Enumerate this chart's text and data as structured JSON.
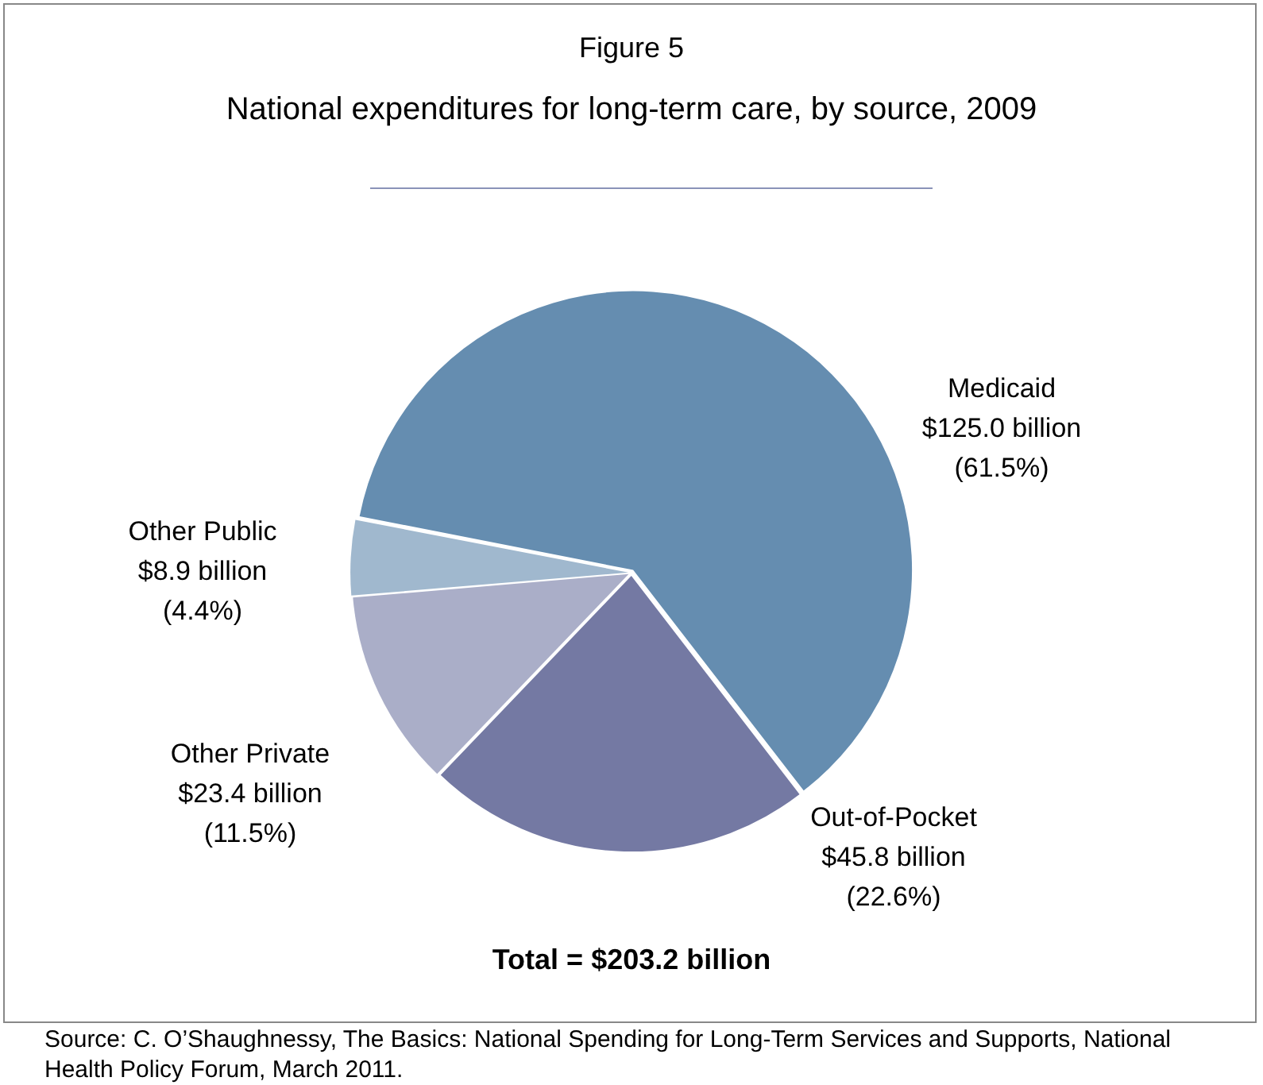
{
  "chart_data": {
    "type": "pie",
    "title": "Figure 5",
    "subtitle": "National expenditures for long-term care, by source, 2009",
    "categories": [
      "Medicaid",
      "Out-of-Pocket",
      "Other Private",
      "Other Public"
    ],
    "values": [
      61.5,
      22.6,
      11.5,
      4.4
    ],
    "colors": [
      "#658db0",
      "#7479a3",
      "#aaaec8",
      "#a0b8ce"
    ],
    "value_labels": [
      "$125.0 billion (61.5%)",
      "$45.8 billion (22.6%)",
      "$23.4 billion (11.5%)",
      "$8.9 billion (4.4%)"
    ],
    "legend": false,
    "annotations": [
      "Total =  $203.2  billion",
      "Source:  C. O’Shaughnessy, The Basics: National Spending for Long-Term Services and Supports, National Health Policy Forum, March 2011."
    ]
  }
}
